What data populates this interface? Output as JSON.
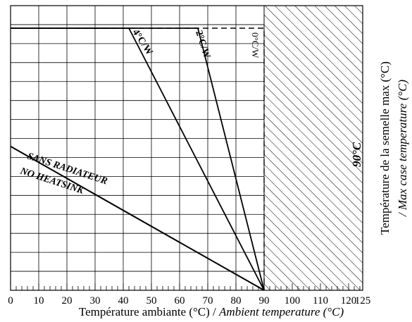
{
  "chart_data": {
    "type": "line",
    "title": "",
    "xlabel_fr": "Température ambiante (°C) / ",
    "xlabel_en": "Ambient temperature (°C)",
    "ylabel_fr": "Température de la semelle max (°C)",
    "ylabel_en": "/ Max case temperature (°C)",
    "xlim": [
      0,
      125
    ],
    "ylim": [
      0,
      1
    ],
    "x_ticks": [
      0,
      10,
      20,
      30,
      40,
      50,
      60,
      70,
      80,
      90,
      100,
      110,
      120,
      125
    ],
    "x_tick_labels": [
      "0",
      "10",
      "20",
      "30",
      "40",
      "50",
      "60",
      "70",
      "80",
      "90",
      "100",
      "110",
      "120",
      "125"
    ],
    "grid": true,
    "hatched_region": {
      "x_from": 90,
      "x_to": 125,
      "label": "90°C"
    },
    "series": [
      {
        "name": "SANS RADIATEUR",
        "subtitle": "NO HEATSINK",
        "x": [
          0,
          90
        ],
        "y": [
          0.549,
          0
        ]
      },
      {
        "name": "4°C/W",
        "x": [
          0,
          42,
          90
        ],
        "y": [
          1,
          1,
          0
        ]
      },
      {
        "name": "2°C/W",
        "x": [
          0,
          66.5,
          90
        ],
        "y": [
          1,
          1,
          0
        ]
      },
      {
        "name": "0°C/W",
        "x": [
          0,
          90,
          90
        ],
        "y": [
          1,
          1,
          0
        ],
        "dashed": true
      }
    ]
  }
}
